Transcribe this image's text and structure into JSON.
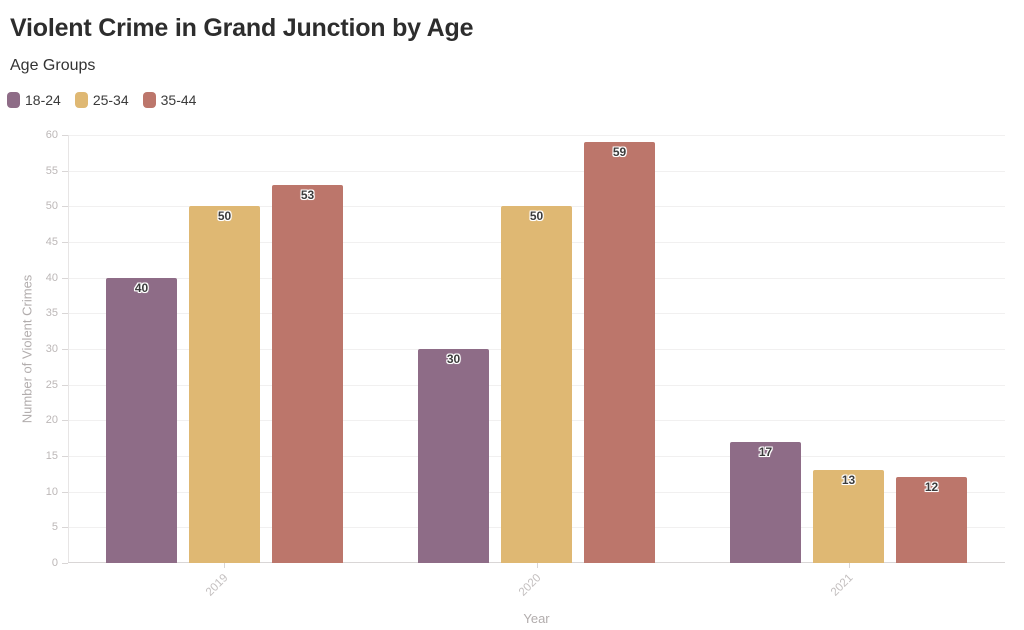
{
  "chart_data": {
    "type": "bar",
    "title": "Violent Crime in Grand Junction by Age",
    "legend_title": "Age Groups",
    "categories": [
      "2019",
      "2020",
      "2021"
    ],
    "series": [
      {
        "name": "18-24",
        "color": "#8E6C87",
        "values": [
          40,
          30,
          17
        ]
      },
      {
        "name": "25-34",
        "color": "#DFB873",
        "values": [
          50,
          50,
          13
        ]
      },
      {
        "name": "35-44",
        "color": "#BC766B",
        "values": [
          53,
          59,
          12
        ]
      }
    ],
    "xlabel": "Year",
    "ylabel": "Number of Violent Crimes",
    "ylim": [
      0,
      60
    ],
    "ytick_step": 5,
    "grid": true,
    "legend_position": "top-left",
    "value_labels": true
  },
  "colors": {
    "background": "#FFFFFF",
    "title_text": "#2D2D2D",
    "legend_text": "#3B3B3B",
    "axis_tick_text": "#BCB7B7",
    "axis_title_text": "#B2ADAD",
    "gridline": "#F1F0F0",
    "axis_line": "#D9D6D6",
    "value_label_text": "#3C3C3C"
  }
}
